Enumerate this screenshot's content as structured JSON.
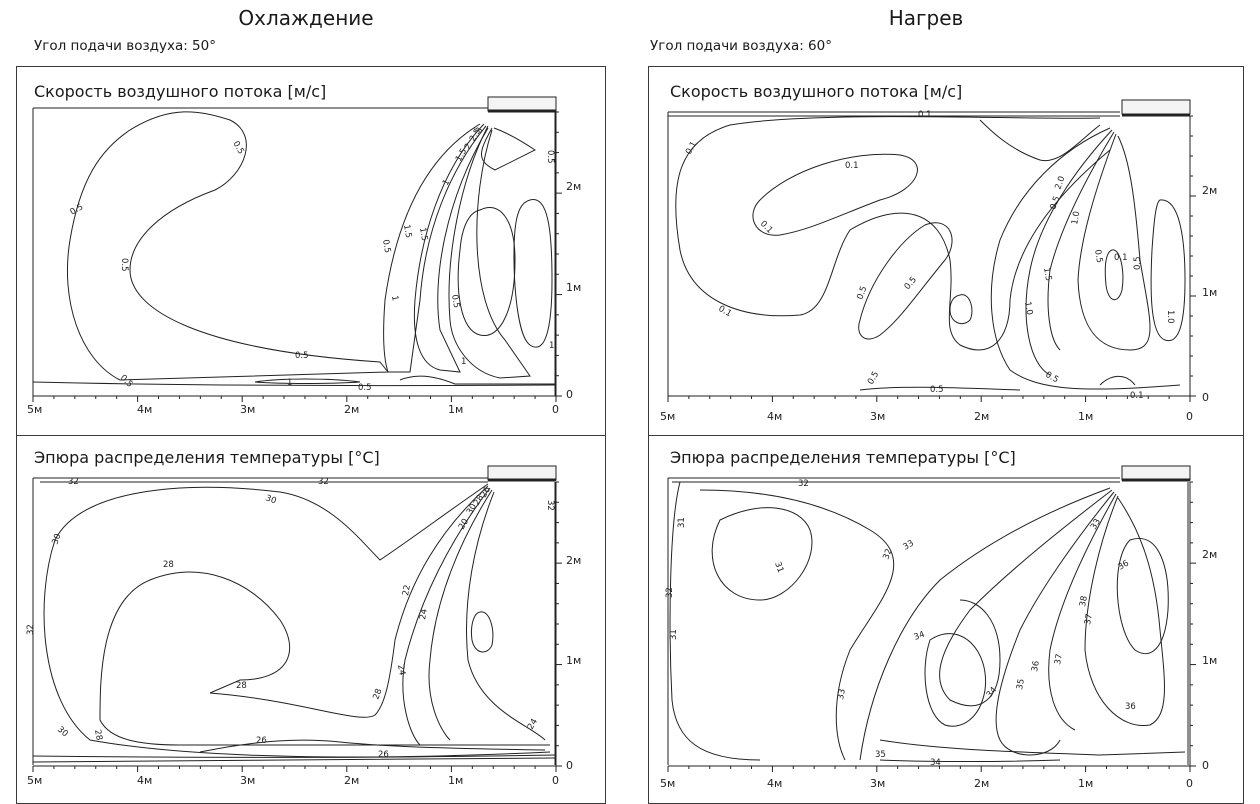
{
  "columns": [
    {
      "title": "Охлаждение",
      "angle_label": "Угол подачи воздуха: 50°",
      "panels": [
        {
          "title": "Скорость воздушного потока [м/с]",
          "contour_labels": [
            "0.5",
            "0.5",
            "0.5",
            "0.5",
            "0.5",
            "0.5",
            "0.5",
            "0.5",
            "1",
            "1",
            "1",
            "1",
            "1.5",
            "1.5",
            "1.5",
            "2",
            "2.5",
            "3",
            "1",
            "0.5"
          ]
        },
        {
          "title": "Эпюра распределения температуры [°C]",
          "contour_labels": [
            "32",
            "32",
            "32",
            "30",
            "30",
            "30",
            "28",
            "28",
            "28",
            "28",
            "26",
            "26",
            "24",
            "24",
            "22",
            "20",
            "30",
            "28",
            "26",
            "24",
            "32"
          ]
        }
      ]
    },
    {
      "title": "Нагрев",
      "angle_label": "Угол подачи воздуха: 60°",
      "panels": [
        {
          "title": "Скорость воздушного потока [м/с]",
          "contour_labels": [
            "0.1",
            "0.1",
            "0.1",
            "0.1",
            "0.1",
            "0.5",
            "0.5",
            "0.5",
            "0.5",
            "1.0",
            "1.5",
            "2.0",
            "0.5",
            "0.5",
            "1.0",
            "0.1",
            "0.5",
            "0.1",
            "0.5",
            "1.0"
          ]
        },
        {
          "title": "Эпюра распределения температуры [°C]",
          "contour_labels": [
            "32",
            "31",
            "31",
            "32",
            "31",
            "32",
            "33",
            "33",
            "34",
            "34",
            "35",
            "36",
            "36",
            "37",
            "38",
            "37",
            "36",
            "33",
            "35",
            "34"
          ]
        }
      ]
    }
  ],
  "axes": {
    "x_ticks": [
      "5м",
      "4м",
      "3м",
      "2м",
      "1м",
      "0"
    ],
    "y_ticks": [
      "2м",
      "1м",
      "0"
    ]
  }
}
